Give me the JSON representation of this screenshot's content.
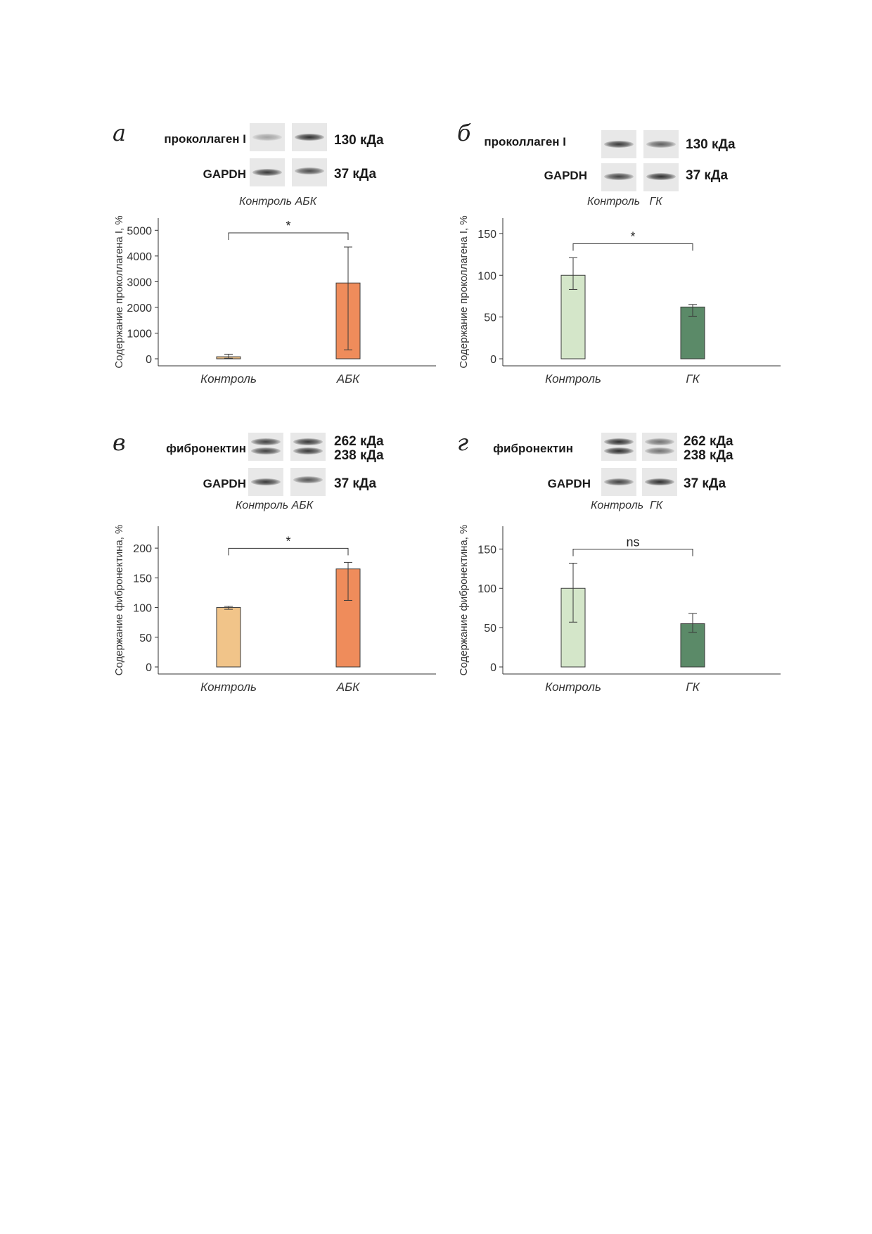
{
  "colors": {
    "abk_control": "#f1c489",
    "abk": "#ef8c5b",
    "gk_control": "#d4e6c9",
    "gk": "#5b8a68",
    "stroke": "#3a3a3a"
  },
  "panels": [
    {
      "letter": "а",
      "blot": {
        "rows": [
          {
            "label": "проколлаген I",
            "kda": [
              "130 кДа"
            ],
            "bands": [
              0.35,
              0.95
            ]
          },
          {
            "label": "GAPDH",
            "kda": [
              "37 кДа"
            ],
            "bands": [
              0.9,
              0.8
            ]
          }
        ],
        "lane_labels": "Контроль АБК"
      },
      "chart_data": {
        "type": "bar",
        "categories": [
          "Контроль",
          "АБК"
        ],
        "values": [
          80,
          2950
        ],
        "error_low": [
          20,
          350
        ],
        "error_high": [
          180,
          4350
        ],
        "ylabel": "Содержание проколлагена I, %",
        "ylim": [
          0,
          5200
        ],
        "yticks": [
          0,
          1000,
          2000,
          3000,
          4000,
          5000
        ],
        "significance": "*",
        "grid": false
      }
    },
    {
      "letter": "б",
      "blot": {
        "rows": [
          {
            "label": "проколлаген I",
            "kda": [
              "130 кДа"
            ],
            "bands": [
              0.9,
              0.7
            ]
          },
          {
            "label": "GAPDH",
            "kda": [
              "37 кДа"
            ],
            "bands": [
              0.85,
              0.95
            ]
          }
        ],
        "lane_labels": "Контроль   ГК"
      },
      "chart_data": {
        "type": "bar",
        "categories": [
          "Контроль",
          "ГК"
        ],
        "values": [
          100,
          62
        ],
        "error_low": [
          83,
          51
        ],
        "error_high": [
          121,
          65
        ],
        "ylabel": "Содержание проколлагена I, %",
        "ylim": [
          0,
          160
        ],
        "yticks": [
          0,
          50,
          100,
          150
        ],
        "significance": "*",
        "grid": false
      }
    },
    {
      "letter": "в",
      "blot": {
        "rows": [
          {
            "label": "фибронектин",
            "kda": [
              "262 кДа",
              "238 кДа"
            ],
            "bands": [
              0.85,
              0.9
            ]
          },
          {
            "label": "GAPDH",
            "kda": [
              "37 кДа"
            ],
            "bands": [
              0.9,
              0.75
            ]
          }
        ],
        "lane_labels": "Контроль АБК"
      },
      "chart_data": {
        "type": "bar",
        "categories": [
          "Контроль",
          "АБК"
        ],
        "values": [
          100,
          165
        ],
        "error_low": [
          97,
          112
        ],
        "error_high": [
          102,
          176
        ],
        "ylabel": "Содержание фибронектина, %",
        "ylim": [
          0,
          225
        ],
        "yticks": [
          0,
          50,
          100,
          150,
          200
        ],
        "significance": "*",
        "grid": false
      }
    },
    {
      "letter": "г",
      "blot": {
        "rows": [
          {
            "label": "фибронектин",
            "kda": [
              "262 кДа",
              "238 кДа"
            ],
            "bands": [
              0.95,
              0.6
            ]
          },
          {
            "label": "GAPDH",
            "kda": [
              "37 кДа"
            ],
            "bands": [
              0.85,
              0.95
            ]
          }
        ],
        "lane_labels": "Контроль  ГК"
      },
      "chart_data": {
        "type": "bar",
        "categories": [
          "Контроль",
          "ГК"
        ],
        "values": [
          100,
          55
        ],
        "error_low": [
          57,
          44
        ],
        "error_high": [
          132,
          68
        ],
        "ylabel": "Содержание фибронектина, %",
        "ylim": [
          0,
          170
        ],
        "yticks": [
          0,
          50,
          100,
          150
        ],
        "significance": "ns",
        "grid": false
      }
    }
  ]
}
